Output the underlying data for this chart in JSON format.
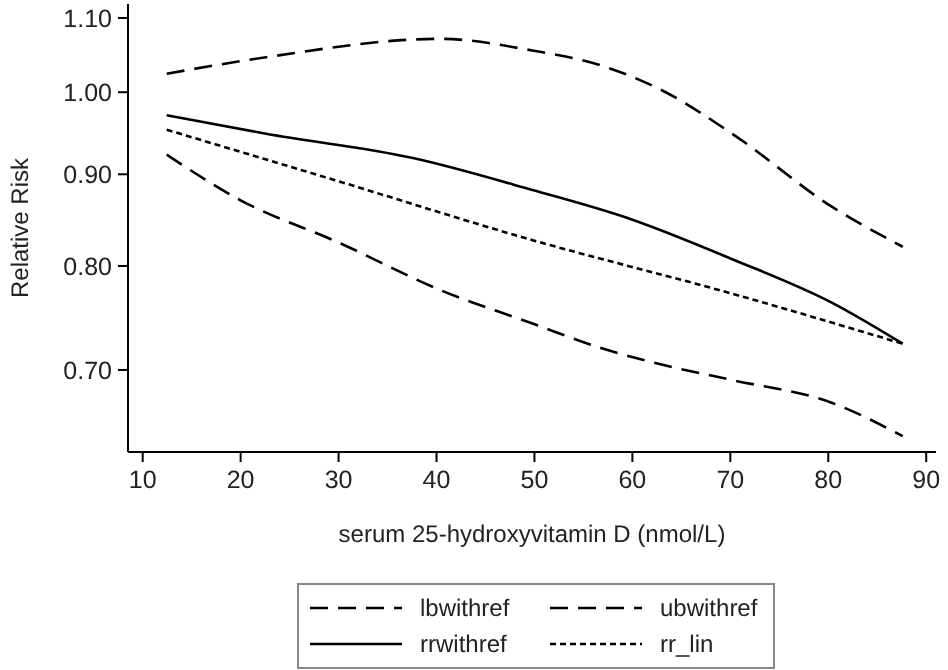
{
  "chart_data": {
    "type": "line",
    "xlabel": "serum 25-hydroxyvitamin D (nmol/L)",
    "ylabel": "Relative Risk",
    "xlim": [
      8.5,
      91
    ],
    "xticks": [
      10,
      20,
      30,
      40,
      50,
      60,
      70,
      80,
      90
    ],
    "ylim": [
      0.63,
      1.12
    ],
    "yticks": [
      {
        "value": 0.7,
        "label": "0.70"
      },
      {
        "value": 0.8,
        "label": "0.80"
      },
      {
        "value": 0.9,
        "label": "0.90"
      },
      {
        "value": 1.0,
        "label": "1.00"
      },
      {
        "value": 1.1,
        "label": "1.10"
      }
    ],
    "log": true,
    "grid": false,
    "legend": "bottom",
    "marker": "none",
    "series": [
      {
        "name": "lbwithref",
        "color": "#000000",
        "line_style": "dashed",
        "x": [
          12.45,
          19.9,
          30.1,
          40.3,
          49.8,
          56.8,
          63.4,
          70.2,
          80.4,
          87.6
        ],
        "values": [
          0.923,
          0.871,
          0.824,
          0.776,
          0.743,
          0.72,
          0.704,
          0.691,
          0.671,
          0.643
        ]
      },
      {
        "name": "ubwithref",
        "color": "#000000",
        "line_style": "dashed",
        "x": [
          12.45,
          22.6,
          40.3,
          49.8,
          56.8,
          63.4,
          70.2,
          80.4,
          87.6
        ],
        "values": [
          1.024,
          1.046,
          1.071,
          1.055,
          1.035,
          1.0,
          0.948,
          0.863,
          0.82
        ]
      },
      {
        "name": "rrwithref",
        "color": "#000000",
        "line_style": "solid",
        "x": [
          12.45,
          22.6,
          37.6,
          49.8,
          60.0,
          70.2,
          80.4,
          87.6
        ],
        "values": [
          0.971,
          0.948,
          0.919,
          0.882,
          0.849,
          0.807,
          0.763,
          0.724
        ]
      },
      {
        "name": "rr_lin",
        "color": "#000000",
        "line_style": "dotted",
        "x": [
          12.45,
          29.4,
          49.8,
          70.2,
          87.6
        ],
        "values": [
          0.953,
          0.894,
          0.827,
          0.772,
          0.724
        ]
      }
    ]
  }
}
